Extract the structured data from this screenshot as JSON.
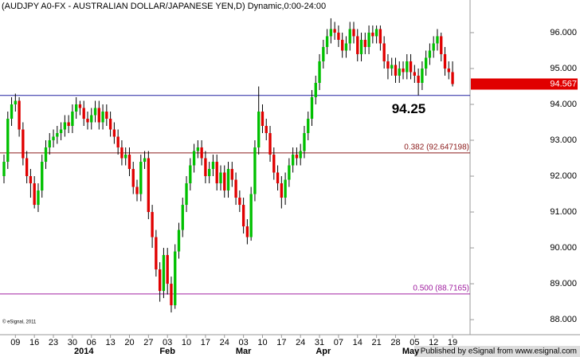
{
  "chart_data": {
    "type": "candlestick",
    "title": "(AUDJPY A0-FX - AUSTRALIAN DOLLAR/JAPANESE YEN,D) Dynamic,0:00-24:00",
    "open": [
      92.0,
      92.4,
      93.6,
      94.0,
      94.1,
      93.3,
      92.5,
      92.0,
      91.8,
      91.2,
      91.6,
      92.4,
      92.8,
      93.0,
      93.1,
      93.2,
      93.3,
      93.5,
      93.4,
      93.8,
      94.0,
      93.9,
      93.6,
      93.5,
      93.7,
      93.9,
      93.5,
      93.8,
      93.6,
      93.3,
      93.1,
      92.8,
      92.5,
      92.6,
      92.2,
      91.7,
      91.5,
      92.4,
      92.5,
      91.0,
      90.3,
      89.4,
      88.8,
      89.8,
      89.0,
      88.4,
      89.9,
      90.5,
      91.2,
      91.8,
      92.3,
      92.7,
      92.8,
      92.5,
      92.0,
      92.2,
      92.4,
      91.8,
      92.1,
      91.6,
      92.2,
      91.9,
      91.4,
      91.2,
      90.6,
      90.3,
      91.5,
      92.8,
      93.8,
      93.4,
      93.2,
      92.6,
      92.1,
      91.8,
      91.4,
      91.9,
      92.3,
      92.6,
      92.5,
      92.7,
      93.2,
      93.6,
      94.2,
      94.6,
      95.2,
      95.6,
      95.9,
      96.1,
      96.0,
      95.8,
      95.5,
      95.7,
      96.1,
      95.9,
      95.4,
      95.8,
      95.6,
      96.0,
      95.9,
      96.1,
      95.7,
      95.2,
      95.0,
      95.1,
      94.8,
      95.0,
      94.9,
      95.2,
      94.9,
      94.8,
      94.6,
      95.0,
      95.3,
      95.5,
      95.7,
      95.9,
      95.4,
      95.0,
      94.9
    ],
    "high": [
      92.6,
      93.8,
      94.2,
      94.3,
      94.2,
      93.5,
      92.7,
      92.2,
      92.0,
      91.8,
      92.6,
      93.0,
      93.2,
      93.3,
      93.4,
      93.5,
      93.7,
      93.7,
      94.0,
      94.2,
      94.1,
      94.1,
      93.8,
      93.9,
      94.1,
      94.1,
      94.0,
      94.0,
      93.8,
      93.5,
      93.3,
      93.0,
      92.8,
      92.8,
      92.4,
      91.9,
      92.6,
      92.7,
      92.7,
      91.2,
      90.5,
      89.6,
      90.0,
      90.0,
      89.2,
      90.1,
      90.7,
      91.4,
      92.0,
      92.5,
      92.9,
      93.0,
      93.0,
      92.7,
      92.4,
      92.6,
      92.6,
      92.3,
      92.3,
      92.4,
      92.4,
      92.1,
      91.6,
      91.4,
      90.8,
      91.7,
      93.0,
      94.5,
      94.0,
      93.6,
      93.4,
      92.8,
      92.3,
      92.0,
      92.1,
      92.5,
      92.8,
      92.8,
      92.9,
      93.4,
      93.8,
      94.4,
      94.8,
      95.4,
      95.8,
      96.1,
      96.4,
      96.3,
      96.2,
      96.0,
      95.9,
      96.3,
      96.3,
      96.1,
      96.0,
      96.0,
      96.2,
      96.2,
      96.2,
      96.2,
      95.9,
      95.4,
      95.3,
      95.3,
      95.2,
      95.2,
      95.4,
      95.4,
      95.1,
      95.0,
      95.2,
      95.5,
      95.7,
      95.9,
      96.1,
      96.0,
      95.6,
      95.2,
      95.2
    ],
    "low": [
      91.8,
      92.2,
      93.4,
      93.8,
      93.1,
      92.3,
      91.8,
      91.4,
      91.1,
      91.0,
      91.4,
      92.2,
      92.6,
      92.8,
      92.9,
      93.0,
      93.1,
      93.2,
      93.2,
      93.6,
      93.7,
      93.4,
      93.3,
      93.3,
      93.5,
      93.3,
      93.3,
      93.4,
      93.1,
      92.9,
      92.6,
      92.3,
      92.3,
      92.0,
      91.5,
      91.3,
      91.3,
      92.2,
      90.8,
      90.0,
      89.2,
      88.5,
      88.6,
      88.7,
      88.2,
      88.3,
      89.7,
      90.3,
      91.0,
      91.6,
      92.1,
      92.5,
      92.3,
      91.8,
      91.8,
      92.0,
      91.6,
      91.6,
      91.4,
      91.4,
      91.7,
      91.2,
      91.0,
      90.4,
      90.1,
      90.2,
      91.3,
      92.6,
      93.2,
      93.0,
      92.4,
      91.9,
      91.6,
      91.1,
      91.2,
      91.7,
      92.1,
      92.3,
      92.3,
      92.5,
      93.0,
      93.4,
      94.0,
      94.4,
      95.0,
      95.4,
      95.7,
      95.8,
      95.6,
      95.3,
      95.3,
      95.5,
      95.7,
      95.2,
      95.2,
      95.4,
      95.4,
      95.7,
      95.7,
      95.5,
      95.0,
      94.7,
      94.8,
      94.6,
      94.6,
      94.7,
      94.7,
      94.7,
      94.6,
      94.25,
      94.4,
      94.8,
      95.1,
      95.3,
      95.5,
      95.2,
      94.8,
      94.7,
      94.5
    ],
    "close": [
      92.4,
      93.6,
      94.0,
      94.1,
      93.3,
      92.5,
      92.0,
      91.8,
      91.2,
      91.6,
      92.4,
      92.8,
      93.0,
      93.1,
      93.2,
      93.3,
      93.5,
      93.4,
      93.8,
      94.0,
      93.9,
      93.6,
      93.5,
      93.7,
      93.9,
      93.5,
      93.8,
      93.6,
      93.3,
      93.1,
      92.8,
      92.5,
      92.6,
      92.2,
      91.7,
      91.5,
      92.4,
      92.5,
      91.0,
      90.3,
      89.4,
      88.8,
      89.8,
      89.0,
      88.4,
      89.9,
      90.5,
      91.2,
      91.8,
      92.3,
      92.7,
      92.8,
      92.5,
      92.0,
      92.2,
      92.4,
      91.8,
      92.1,
      91.6,
      92.2,
      91.9,
      91.4,
      91.2,
      90.6,
      90.3,
      91.5,
      92.8,
      93.8,
      93.4,
      93.2,
      92.6,
      92.1,
      91.8,
      91.4,
      91.9,
      92.3,
      92.6,
      92.5,
      92.7,
      93.2,
      93.6,
      94.2,
      94.6,
      95.2,
      95.6,
      95.9,
      96.1,
      96.0,
      95.8,
      95.5,
      95.7,
      96.1,
      95.9,
      95.4,
      95.8,
      95.6,
      96.0,
      95.9,
      96.1,
      95.7,
      95.2,
      95.0,
      95.1,
      94.8,
      95.0,
      94.9,
      95.2,
      94.9,
      94.8,
      94.6,
      95.0,
      95.3,
      95.5,
      95.7,
      95.9,
      95.4,
      95.0,
      94.9,
      94.567
    ],
    "up_color": "#00c000",
    "down_color": "#e00000",
    "xlim": [
      -1.05,
      122.6
    ],
    "xticks": [
      {
        "value": 3,
        "label": "09"
      },
      {
        "value": 8,
        "label": "16"
      },
      {
        "value": 13,
        "label": "23"
      },
      {
        "value": 18,
        "label": "30"
      },
      {
        "value": 23,
        "label": "06"
      },
      {
        "value": 28,
        "label": "13"
      },
      {
        "value": 33,
        "label": "20"
      },
      {
        "value": 38,
        "label": "27"
      },
      {
        "value": 43,
        "label": "03"
      },
      {
        "value": 48,
        "label": "10"
      },
      {
        "value": 53,
        "label": "17"
      },
      {
        "value": 58,
        "label": "24"
      },
      {
        "value": 63,
        "label": "03"
      },
      {
        "value": 68,
        "label": "10"
      },
      {
        "value": 73,
        "label": "17"
      },
      {
        "value": 78,
        "label": "24"
      },
      {
        "value": 83,
        "label": "31"
      },
      {
        "value": 88,
        "label": "07"
      },
      {
        "value": 93,
        "label": "14"
      },
      {
        "value": 98,
        "label": "21"
      },
      {
        "value": 103,
        "label": "28"
      },
      {
        "value": 108,
        "label": "05"
      },
      {
        "value": 113,
        "label": "12"
      },
      {
        "value": 118,
        "label": "19"
      }
    ],
    "month_labels": [
      {
        "value": 21,
        "label": "2014"
      },
      {
        "value": 43,
        "label": "Feb"
      },
      {
        "value": 63,
        "label": "Mar"
      },
      {
        "value": 84,
        "label": "Apr"
      },
      {
        "value": 107,
        "label": "May"
      }
    ],
    "ylim": [
      87.58,
      96.91
    ],
    "yticks": [
      {
        "value": 96,
        "label": "96.000"
      },
      {
        "value": 95,
        "label": "95.000"
      },
      {
        "value": 94,
        "label": "94.000"
      },
      {
        "value": 93,
        "label": "93.000"
      },
      {
        "value": 92,
        "label": "92.000"
      },
      {
        "value": 91,
        "label": "91.000"
      },
      {
        "value": 90,
        "label": "90.000"
      },
      {
        "value": 89,
        "label": "89.000"
      },
      {
        "value": 88,
        "label": "88.000"
      }
    ],
    "support": {
      "value": 94.25,
      "color": "#2020a0"
    },
    "fib_levels": [
      {
        "value": 92.647198,
        "label": "0.382 (92.647198)",
        "color": "#8b1a1a"
      },
      {
        "value": 88.7165,
        "label": "0.500 (88.7165)",
        "color": "#a020a0"
      }
    ],
    "last_price_color": "#e00000"
  },
  "copyright": "© eSignal, 2011",
  "footer": "Published by eSignal from www.esignal.com"
}
